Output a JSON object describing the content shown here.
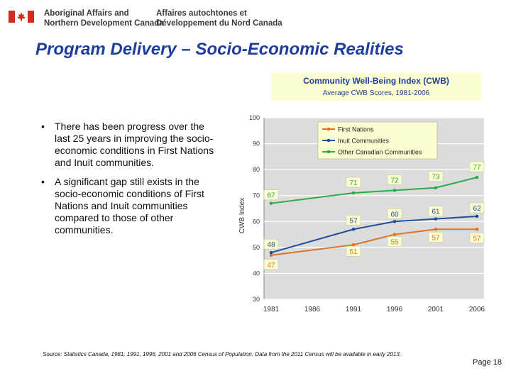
{
  "header": {
    "org_en_line1": "Aboriginal Affairs and",
    "org_en_line2": "Northern Development Canada",
    "org_fr_line1": "Affaires autochtones et",
    "org_fr_line2": "Développement du Nord Canada",
    "flag_icon": "canada-flag-icon",
    "flag_color": "#d52b1e"
  },
  "title": "Program Delivery – Socio-Economic Realities",
  "bullets": [
    "There has been progress over the last 25 years in improving the socio-economic conditions in First Nations and Inuit communities.",
    "A significant gap still exists in the socio-economic conditions of First Nations and Inuit communities compared to those of other communities."
  ],
  "bullet_symbol": "•",
  "source": "Source: Statistics Canada, 1981, 1991, 1996, 2001 and 2006 Census of Population. Data from the 2011 Census will be available in early 2013.",
  "page_label": "Page 18",
  "chart_data": {
    "type": "line",
    "title": "Community Well-Being Index (CWB)",
    "subtitle": "Average CWB Scores, 1981-2006",
    "xlabel": "",
    "ylabel": "CWB Index",
    "x": [
      1981,
      1986,
      1991,
      1996,
      2001,
      2006
    ],
    "xtick_labels": [
      "1981",
      "1986",
      "1991",
      "1996",
      "2001",
      "2006"
    ],
    "ylim": [
      30,
      100
    ],
    "yticks": [
      30,
      40,
      50,
      60,
      70,
      80,
      90,
      100
    ],
    "grid": true,
    "legend_position": "top",
    "series": [
      {
        "name": "First Nations",
        "color": "#d9742a",
        "x": [
          1981,
          1991,
          1996,
          2001,
          2006
        ],
        "values": [
          47,
          51,
          55,
          57,
          57
        ],
        "labels": [
          "47",
          "51",
          "55",
          "57",
          "57"
        ]
      },
      {
        "name": "Inuit Communities",
        "color": "#1f4f9a",
        "x": [
          1981,
          1991,
          1996,
          2001,
          2006
        ],
        "values": [
          48,
          57,
          60,
          61,
          62
        ],
        "labels": [
          "48",
          "57",
          "60",
          "61",
          "62"
        ]
      },
      {
        "name": "Other Canadian Communities",
        "color": "#2faa4a",
        "x": [
          1981,
          1991,
          1996,
          2001,
          2006
        ],
        "values": [
          67,
          71,
          72,
          73,
          77
        ],
        "labels": [
          "67",
          "71",
          "72",
          "73",
          "77"
        ]
      }
    ],
    "colors": {
      "plot_background": "#dcdcdc",
      "label_background": "#fdfdd2",
      "legend_background": "#fdfdd2"
    }
  }
}
